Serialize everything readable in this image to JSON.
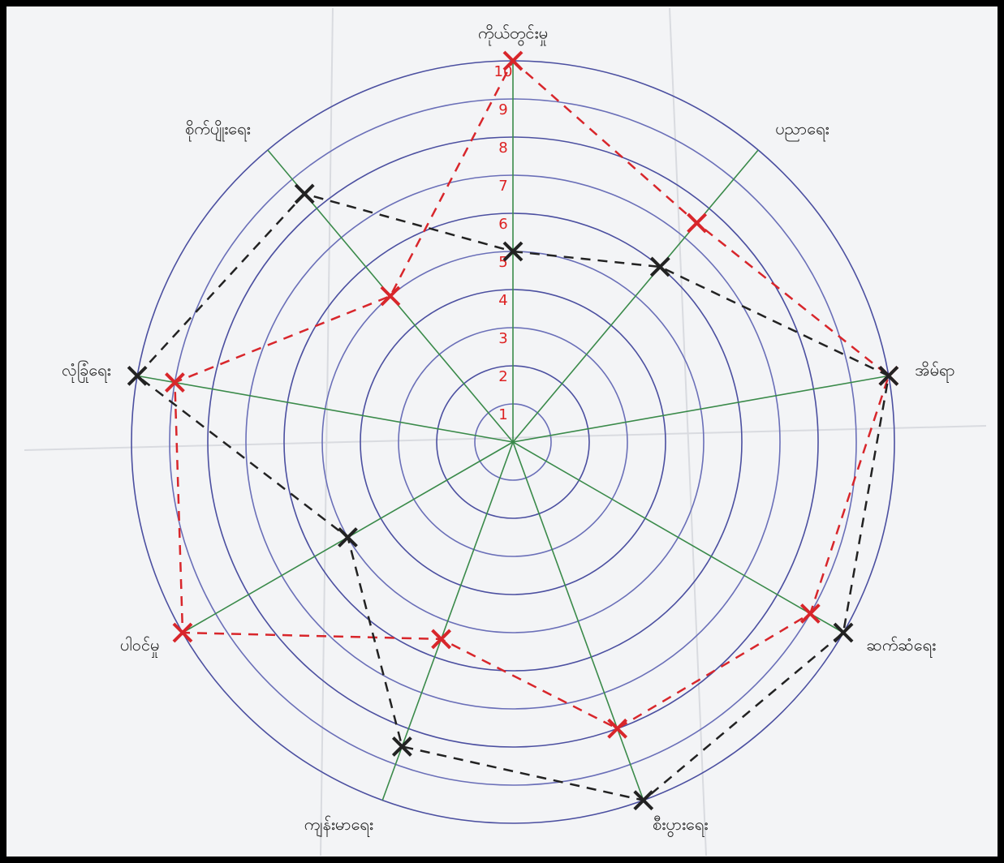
{
  "chart_data": {
    "type": "radar",
    "categories": [
      "ကိုယ်တွင်းမှု",
      "ပညာရေး",
      "အိမ်ရာ",
      "ဆက်ဆံရေး",
      "စီးပွားရေး",
      "ကျန်းမာရေး",
      "ပါဝင်မှု",
      "လုံခြုံရေး",
      "စိုက်ပျိုးရေး"
    ],
    "rlim": [
      0,
      10
    ],
    "rticks": [
      1,
      2,
      3,
      4,
      5,
      6,
      7,
      8,
      9,
      10
    ],
    "grid": true,
    "series": [
      {
        "color": "#d8262b",
        "values": [
          10,
          7.5,
          10,
          9,
          8,
          5.5,
          10,
          9,
          5
        ]
      },
      {
        "color": "#222222",
        "values": [
          5,
          6,
          10,
          10,
          10,
          8.5,
          5,
          10,
          8.5
        ]
      }
    ]
  }
}
